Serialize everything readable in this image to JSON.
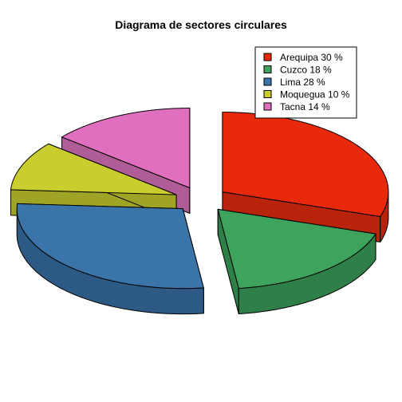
{
  "chart_data": {
    "type": "pie",
    "style": "3d-exploded",
    "title": "Diagrama de sectores circulares",
    "legend_position": "top-right",
    "slices": [
      {
        "label": "Arequipa 30 %",
        "category": "Arequipa",
        "value": 30,
        "color": "#E8290C",
        "side_color": "#B8240B"
      },
      {
        "label": "Cuzco 18 %",
        "category": "Cuzco",
        "value": 18,
        "color": "#3DA35D",
        "side_color": "#2F7F48"
      },
      {
        "label": "Lima 28 %",
        "category": "Lima",
        "value": 28,
        "color": "#3A74A8",
        "side_color": "#2D5A84"
      },
      {
        "label": "Moquegua 10 %",
        "category": "Moquegua",
        "value": 10,
        "color": "#C9CD2E",
        "side_color": "#A0A426"
      },
      {
        "label": "Tacna 14 %",
        "category": "Tacna",
        "value": 14,
        "color": "#E070BF",
        "side_color": "#B05C97"
      }
    ]
  }
}
